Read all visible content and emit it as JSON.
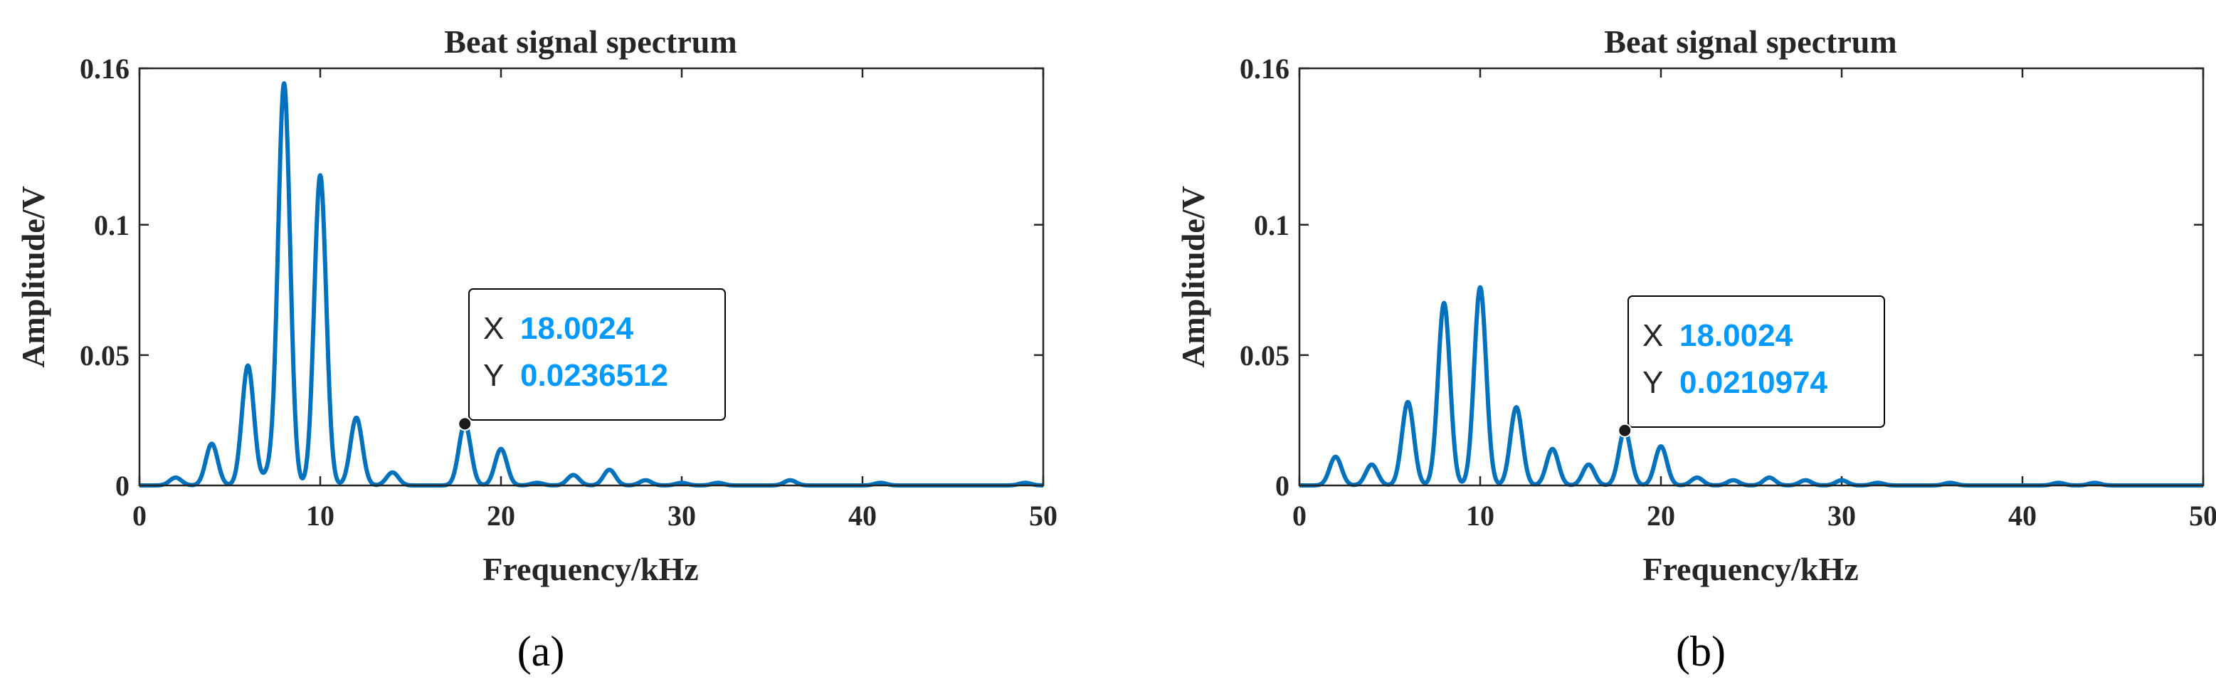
{
  "chart_data": [
    {
      "type": "line",
      "panel_label": "(a)",
      "title": "Beat signal spectrum",
      "xlabel": "Frequency/kHz",
      "ylabel": "Amplitude/V",
      "xlim": [
        0,
        50
      ],
      "ylim": [
        0,
        0.16
      ],
      "xticks": [
        0,
        10,
        20,
        30,
        40,
        50
      ],
      "xtick_labels": [
        "0",
        "10",
        "20",
        "30",
        "40",
        "50"
      ],
      "yticks": [
        0,
        0.05,
        0.1,
        0.16
      ],
      "ytick_labels": [
        "0",
        "0.05",
        "0.1",
        "0.16"
      ],
      "line_color": "#0072BD",
      "peaks": [
        {
          "x": 2,
          "y": 0.003
        },
        {
          "x": 4,
          "y": 0.016
        },
        {
          "x": 6,
          "y": 0.046
        },
        {
          "x": 7.2,
          "y": 0.005
        },
        {
          "x": 8,
          "y": 0.154
        },
        {
          "x": 10,
          "y": 0.119
        },
        {
          "x": 12,
          "y": 0.026
        },
        {
          "x": 14,
          "y": 0.005
        },
        {
          "x": 18,
          "y": 0.0237
        },
        {
          "x": 20,
          "y": 0.014
        },
        {
          "x": 22,
          "y": 0.001
        },
        {
          "x": 24,
          "y": 0.004
        },
        {
          "x": 26,
          "y": 0.006
        },
        {
          "x": 28,
          "y": 0.002
        },
        {
          "x": 30,
          "y": 0.001
        },
        {
          "x": 32,
          "y": 0.001
        },
        {
          "x": 36,
          "y": 0.002
        },
        {
          "x": 41,
          "y": 0.001
        },
        {
          "x": 49,
          "y": 0.001
        }
      ],
      "datatip": {
        "x": 18.0024,
        "y": 0.0236512,
        "x_key": "X",
        "y_key": "Y",
        "x_text": "18.0024",
        "y_text": "0.0236512"
      }
    },
    {
      "type": "line",
      "panel_label": "(b)",
      "title": "Beat signal spectrum",
      "xlabel": "Frequency/kHz",
      "ylabel": "Amplitude/V",
      "xlim": [
        0,
        50
      ],
      "ylim": [
        0,
        0.16
      ],
      "xticks": [
        0,
        10,
        20,
        30,
        40,
        50
      ],
      "xtick_labels": [
        "0",
        "10",
        "20",
        "30",
        "40",
        "50"
      ],
      "yticks": [
        0,
        0.05,
        0.1,
        0.16
      ],
      "ytick_labels": [
        "0",
        "0.05",
        "0.1",
        "0.16"
      ],
      "line_color": "#0072BD",
      "peaks": [
        {
          "x": 2,
          "y": 0.011
        },
        {
          "x": 4,
          "y": 0.008
        },
        {
          "x": 6,
          "y": 0.032
        },
        {
          "x": 8,
          "y": 0.07
        },
        {
          "x": 10,
          "y": 0.076
        },
        {
          "x": 12,
          "y": 0.03
        },
        {
          "x": 14,
          "y": 0.014
        },
        {
          "x": 16,
          "y": 0.008
        },
        {
          "x": 18,
          "y": 0.0211
        },
        {
          "x": 20,
          "y": 0.015
        },
        {
          "x": 22,
          "y": 0.003
        },
        {
          "x": 24,
          "y": 0.002
        },
        {
          "x": 26,
          "y": 0.003
        },
        {
          "x": 28,
          "y": 0.002
        },
        {
          "x": 30,
          "y": 0.002
        },
        {
          "x": 32,
          "y": 0.001
        },
        {
          "x": 36,
          "y": 0.001
        },
        {
          "x": 42,
          "y": 0.001
        },
        {
          "x": 44,
          "y": 0.001
        }
      ],
      "datatip": {
        "x": 18.0024,
        "y": 0.0210974,
        "x_key": "X",
        "y_key": "Y",
        "x_text": "18.0024",
        "y_text": "0.0210974"
      }
    }
  ]
}
